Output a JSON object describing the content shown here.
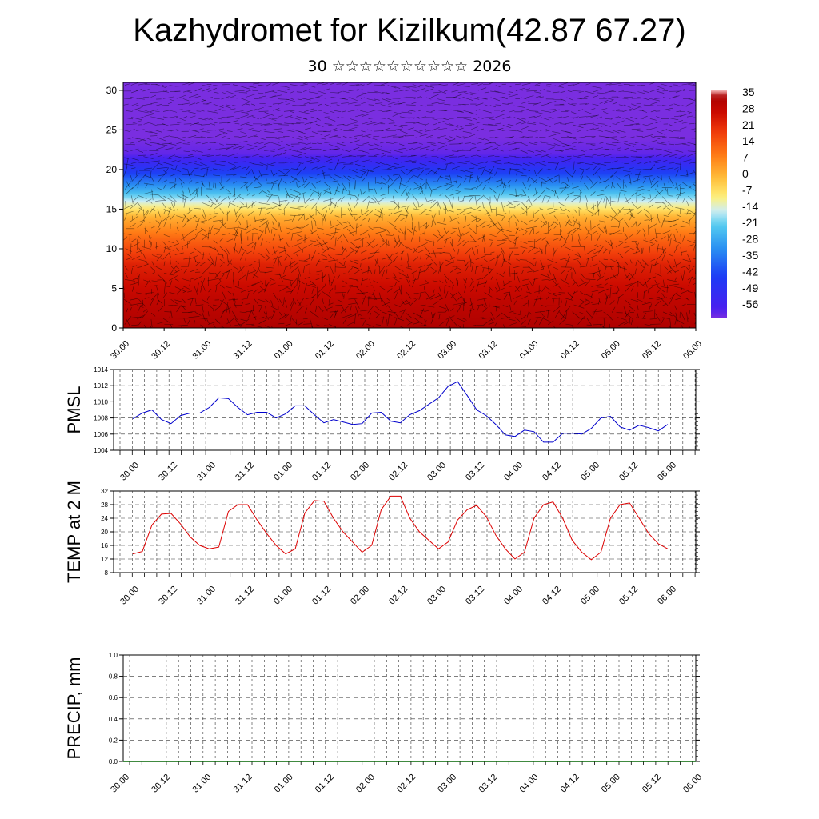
{
  "header": {
    "title": "Kazhydromet for Kizilkum(42.87 67.27)",
    "subtitle": "30 ☆☆☆☆☆☆☆☆☆☆ 2026"
  },
  "chart_data": [
    {
      "type": "heatmap",
      "title": "",
      "xlabel": "",
      "ylabel": "",
      "x_ticks": [
        "30.00",
        "30.12",
        "31.00",
        "31.12",
        "01.00",
        "01.12",
        "02.00",
        "02.12",
        "03.00",
        "03.12",
        "04.00",
        "04.12",
        "05.00",
        "05.12",
        "06.00"
      ],
      "y_ticks": [
        0,
        5,
        10,
        15,
        20,
        25,
        30
      ],
      "ylim": [
        0,
        31
      ],
      "colorbar_labels": [
        "35",
        "28",
        "21",
        "14",
        "7",
        "0",
        "-7",
        "-14",
        "-21",
        "-28",
        "-35",
        "-42",
        "-49",
        "-56"
      ],
      "colorbar_range": [
        -60,
        38
      ],
      "profile": [
        {
          "level": 0,
          "value": 34
        },
        {
          "level": 4,
          "value": 30
        },
        {
          "level": 8,
          "value": 24
        },
        {
          "level": 11,
          "value": 14
        },
        {
          "level": 14,
          "value": 2
        },
        {
          "level": 16,
          "value": -14
        },
        {
          "level": 18,
          "value": -30
        },
        {
          "level": 20,
          "value": -45
        },
        {
          "level": 22,
          "value": -58
        },
        {
          "level": 24,
          "value": -60
        },
        {
          "level": 31,
          "value": -60
        }
      ],
      "colors": {
        "hot": "#b80000",
        "warm": "#ff6600",
        "mid": "#ffee66",
        "cool": "#33bbff",
        "cold": "#3311ee",
        "coldest": "#7722dd"
      }
    },
    {
      "type": "line",
      "ylabel": "PMSL",
      "ylim": [
        1004,
        1014
      ],
      "y_ticks": [
        1004,
        1006,
        1008,
        1010,
        1012,
        1014
      ],
      "x_ticks": [
        "30.00",
        "30.12",
        "31.00",
        "31.12",
        "01.00",
        "01.12",
        "02.00",
        "02.12",
        "03.00",
        "03.12",
        "04.00",
        "04.12",
        "05.00",
        "05.12",
        "06.00"
      ],
      "series": [
        {
          "color": "#0000cc",
          "values": [
            1007.9,
            1008.6,
            1009.0,
            1007.8,
            1007.3,
            1008.3,
            1008.6,
            1008.6,
            1009.3,
            1010.5,
            1010.4,
            1009.3,
            1008.4,
            1008.7,
            1008.7,
            1008.0,
            1008.5,
            1009.5,
            1009.5,
            1008.4,
            1007.4,
            1007.8,
            1007.5,
            1007.2,
            1007.3,
            1008.6,
            1008.7,
            1007.6,
            1007.4,
            1008.4,
            1008.9,
            1009.7,
            1010.5,
            1011.9,
            1012.5,
            1010.8,
            1009.0,
            1008.3,
            1007.2,
            1005.9,
            1005.7,
            1006.5,
            1006.3,
            1005.0,
            1005.0,
            1006.1,
            1006.1,
            1006.0,
            1006.7,
            1008.0,
            1008.2,
            1006.9,
            1006.5,
            1007.1,
            1006.8,
            1006.4,
            1007.2
          ]
        }
      ]
    },
    {
      "type": "line",
      "ylabel": "TEMP at 2 M",
      "ylim": [
        8,
        32
      ],
      "y_ticks": [
        8,
        12,
        16,
        20,
        24,
        28,
        32
      ],
      "x_ticks": [
        "30.00",
        "30.12",
        "31.00",
        "31.12",
        "01.00",
        "01.12",
        "02.00",
        "02.12",
        "03.00",
        "03.12",
        "04.00",
        "04.12",
        "05.00",
        "05.12",
        "06.00"
      ],
      "series": [
        {
          "color": "#dd0000",
          "values": [
            13.5,
            14.2,
            22.0,
            25.2,
            25.4,
            22.3,
            18.5,
            16.0,
            15.0,
            15.5,
            26.0,
            28.0,
            28.0,
            23.5,
            19.5,
            16.0,
            13.5,
            15.0,
            25.5,
            29.2,
            29.0,
            24.0,
            20.0,
            17.0,
            14.0,
            16.0,
            26.5,
            30.5,
            30.5,
            24.0,
            20.0,
            17.5,
            15.0,
            17.0,
            23.5,
            26.5,
            27.8,
            24.5,
            19.0,
            15.0,
            12.0,
            14.0,
            24.0,
            28.0,
            28.8,
            24.0,
            17.5,
            14.0,
            11.8,
            14.0,
            24.0,
            28.0,
            28.5,
            24.0,
            19.5,
            16.5,
            15.0
          ]
        }
      ]
    },
    {
      "type": "bar",
      "ylabel": "PRECIP, mm",
      "ylim": [
        0,
        1
      ],
      "y_ticks": [
        "0.0",
        "0.2",
        "0.4",
        "0.6",
        "0.8",
        "1.0"
      ],
      "x_ticks": [
        "30.00",
        "30.12",
        "31.00",
        "31.12",
        "01.00",
        "01.12",
        "02.00",
        "02.12",
        "03.00",
        "03.12",
        "04.00",
        "04.12",
        "05.00",
        "05.12",
        "06.00"
      ],
      "series": [
        {
          "color": "#006400",
          "values": []
        }
      ]
    }
  ]
}
